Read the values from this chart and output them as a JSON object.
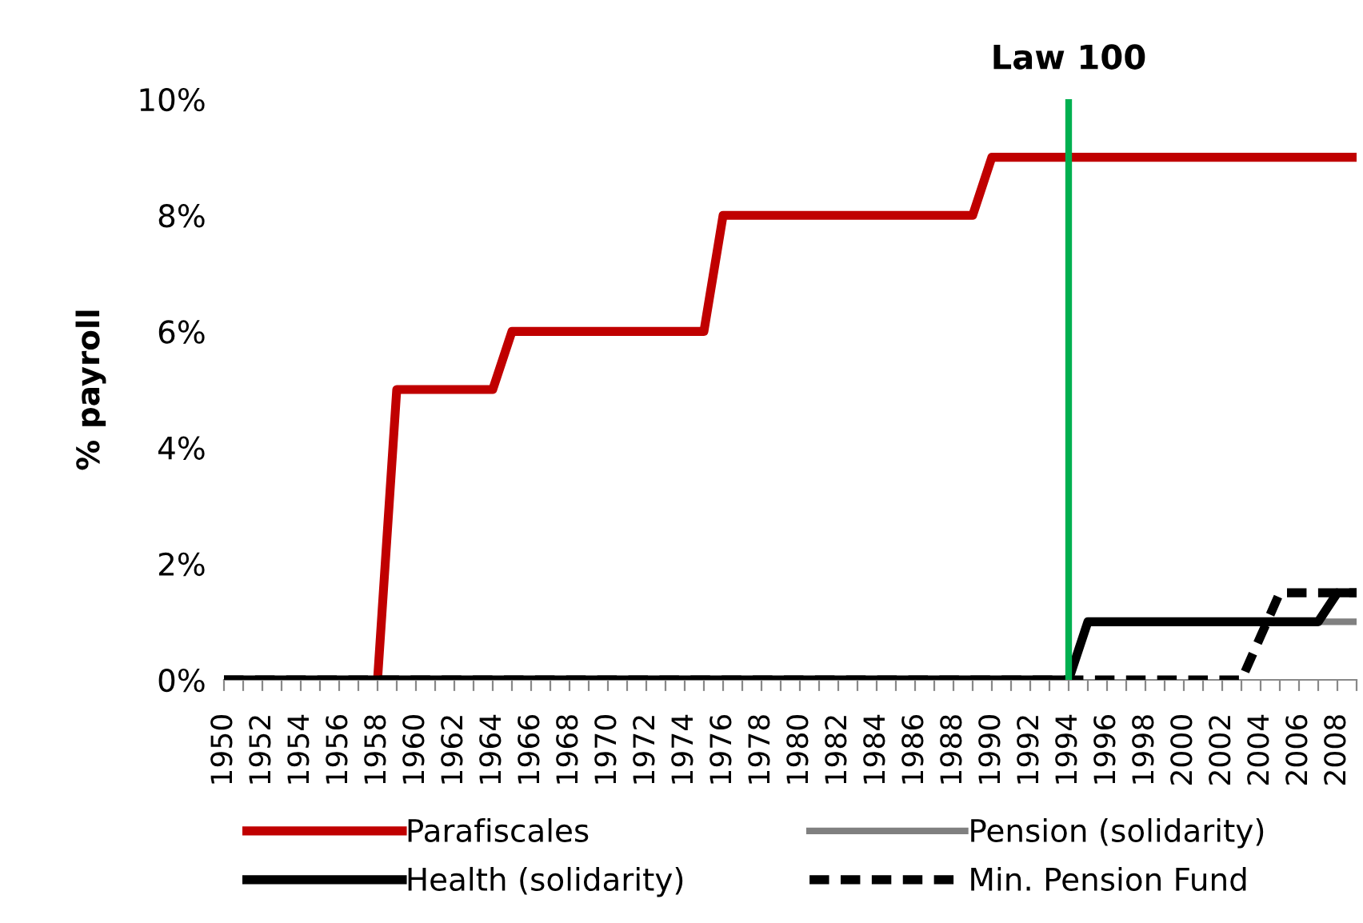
{
  "chart_data": {
    "type": "line",
    "ylabel": "% payroll",
    "categories": [
      "1950",
      null,
      "1952",
      null,
      "1954",
      null,
      "1956",
      null,
      "1958",
      null,
      "1960",
      null,
      "1962",
      null,
      "1964",
      null,
      "1966",
      null,
      "1968",
      null,
      "1970",
      null,
      "1972",
      null,
      "1974",
      null,
      "1976",
      null,
      "1978",
      null,
      "1980",
      null,
      "1982",
      null,
      "1984",
      null,
      "1986",
      null,
      "1988",
      null,
      "1990",
      null,
      "1992",
      null,
      "1994",
      null,
      "1996",
      null,
      "1998",
      null,
      "2000",
      null,
      "2002",
      null,
      "2004",
      null,
      "2006",
      null,
      "2008",
      null
    ],
    "series": [
      {
        "name": "Parafiscales",
        "color": "#c00000",
        "line_style": "solid",
        "values": [
          null,
          null,
          null,
          null,
          null,
          null,
          null,
          null,
          0,
          5,
          5,
          5,
          5,
          5,
          5,
          6,
          6,
          6,
          6,
          6,
          6,
          6,
          6,
          6,
          6,
          6,
          8,
          8,
          8,
          8,
          8,
          8,
          8,
          8,
          8,
          8,
          8,
          8,
          8,
          8,
          9,
          9,
          9,
          9,
          9,
          9,
          9,
          9,
          9,
          9,
          9,
          9,
          9,
          9,
          9,
          9,
          9,
          9,
          9,
          9
        ]
      },
      {
        "name": "Pension (solidarity)",
        "color": "#808080",
        "line_style": "solid",
        "values": [
          null,
          null,
          null,
          null,
          null,
          null,
          null,
          null,
          null,
          null,
          null,
          null,
          null,
          null,
          null,
          null,
          null,
          null,
          null,
          null,
          null,
          null,
          null,
          null,
          null,
          null,
          null,
          null,
          null,
          null,
          null,
          null,
          null,
          null,
          null,
          null,
          null,
          null,
          null,
          null,
          null,
          null,
          null,
          null,
          null,
          null,
          null,
          null,
          null,
          null,
          null,
          null,
          null,
          null,
          null,
          null,
          null,
          1,
          1,
          1
        ]
      },
      {
        "name": "Health (solidarity)",
        "color": "#000000",
        "line_style": "solid",
        "values": [
          0,
          0,
          0,
          0,
          0,
          0,
          0,
          0,
          0,
          0,
          0,
          0,
          0,
          0,
          0,
          0,
          0,
          0,
          0,
          0,
          0,
          0,
          0,
          0,
          0,
          0,
          0,
          0,
          0,
          0,
          0,
          0,
          0,
          0,
          0,
          0,
          0,
          0,
          0,
          0,
          0,
          0,
          0,
          0,
          0,
          1,
          1,
          1,
          1,
          1,
          1,
          1,
          1,
          1,
          1,
          1,
          1,
          1,
          1.5,
          1.5
        ]
      },
      {
        "name": "Min. Pension Fund",
        "color": "#000000",
        "line_style": "dashed",
        "values": [
          0,
          0,
          0,
          0,
          0,
          0,
          0,
          0,
          0,
          0,
          0,
          0,
          0,
          0,
          0,
          0,
          0,
          0,
          0,
          0,
          0,
          0,
          0,
          0,
          0,
          0,
          0,
          0,
          0,
          0,
          0,
          0,
          0,
          0,
          0,
          0,
          0,
          0,
          0,
          0,
          0,
          0,
          0,
          0,
          0,
          0,
          0,
          0,
          0,
          0,
          0,
          0,
          0,
          0,
          0.75,
          1.5,
          1.5,
          1.5,
          1.5,
          1.5
        ]
      }
    ],
    "ylim": [
      0,
      10
    ],
    "yticks": [
      {
        "value": 0,
        "label": "0%"
      },
      {
        "value": 2,
        "label": "2%"
      },
      {
        "value": 4,
        "label": "4%"
      },
      {
        "value": 6,
        "label": "6%"
      },
      {
        "value": 8,
        "label": "8%"
      },
      {
        "value": 10,
        "label": "10%"
      }
    ],
    "ref_lines": [
      {
        "axis": "x",
        "value": "1994",
        "label": "Law 100",
        "color": "#00b050"
      }
    ],
    "grid": false,
    "legend": "bottom",
    "marker": "none"
  }
}
